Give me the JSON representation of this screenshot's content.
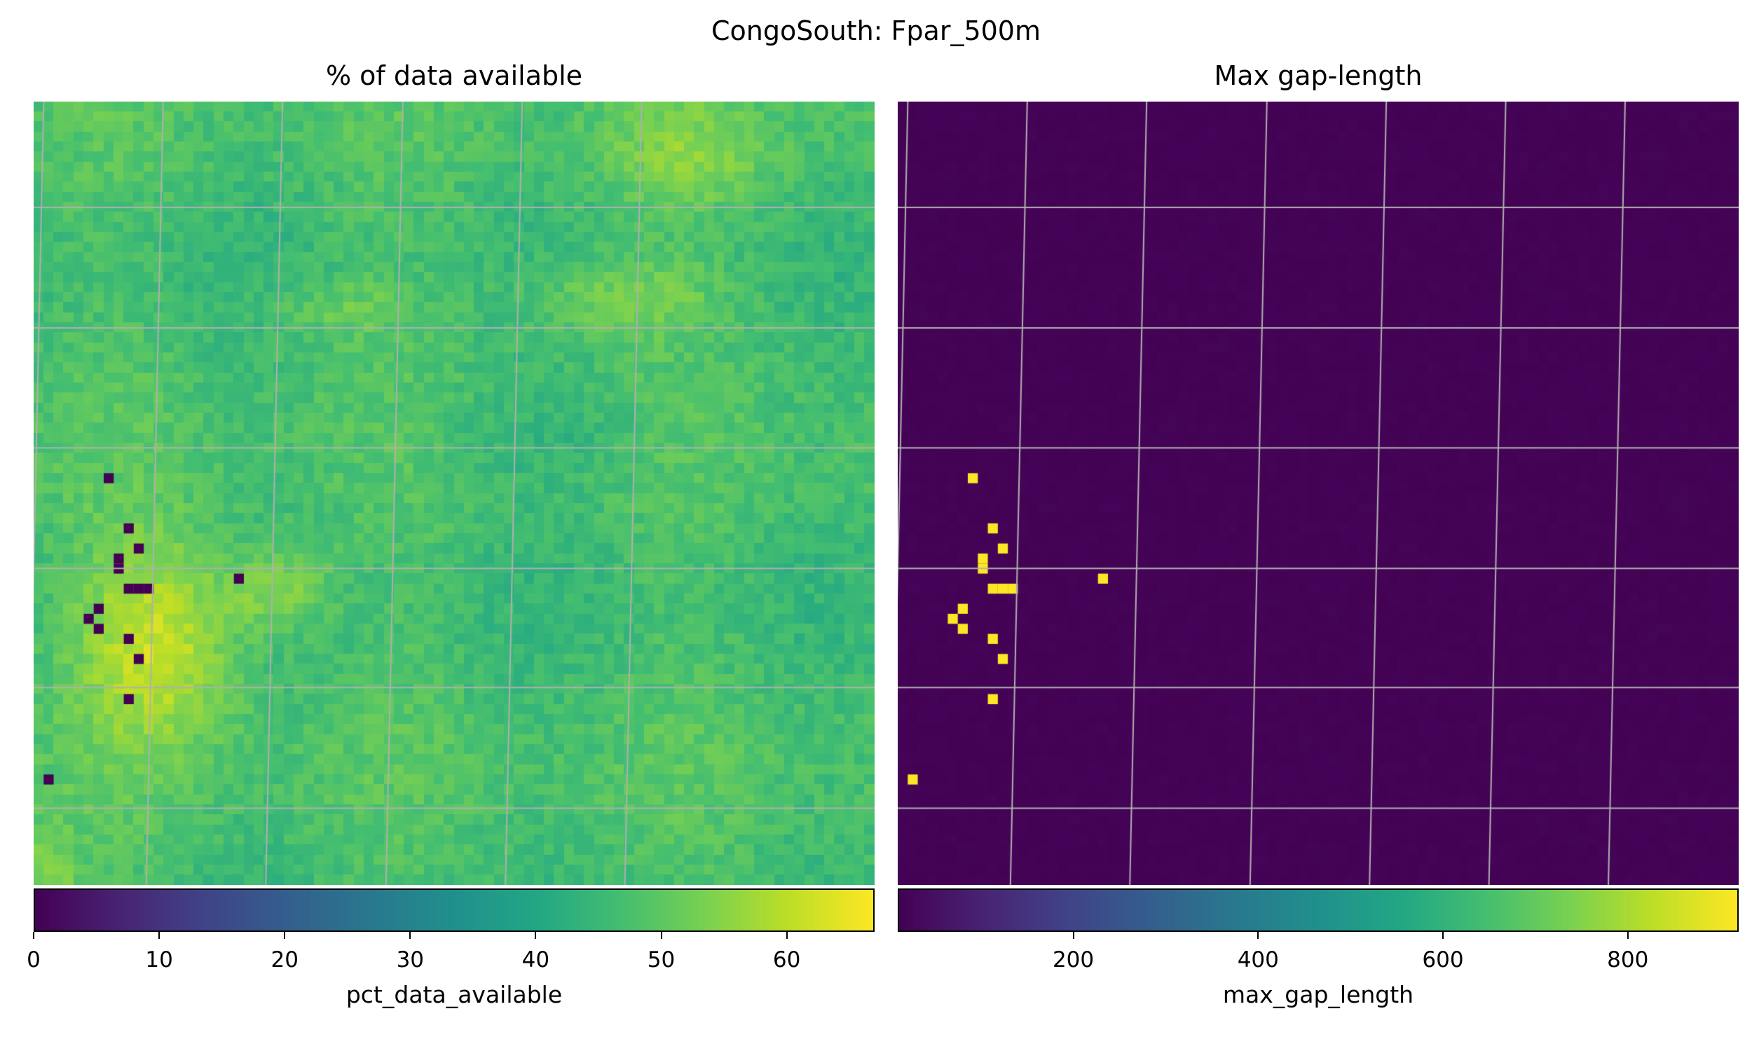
{
  "suptitle": "CongoSouth: Fpar_500m",
  "chart_data": [
    {
      "type": "heatmap",
      "title": "% of data available",
      "colorbar_label": "pct_data_available",
      "colormap": "viridis",
      "vmin": 0,
      "vmax": 67,
      "colorbar_ticks": [
        0,
        10,
        20,
        30,
        40,
        50,
        60
      ],
      "grid": true,
      "grid_color": "#b0b0b0",
      "field_description": "green field mostly 40-55, brighter yellow-green band 55-67 on left and center-upper, dark purple missing cells near 0",
      "low_value_cells": [
        {
          "col": 7,
          "row": 37,
          "value": 0
        },
        {
          "col": 9,
          "row": 42,
          "value": 0
        },
        {
          "col": 10,
          "row": 44,
          "value": 0
        },
        {
          "col": 8,
          "row": 45,
          "value": 0
        },
        {
          "col": 8,
          "row": 46,
          "value": 0
        },
        {
          "col": 9,
          "row": 48,
          "value": 0
        },
        {
          "col": 10,
          "row": 48,
          "value": 0
        },
        {
          "col": 11,
          "row": 48,
          "value": 0
        },
        {
          "col": 20,
          "row": 47,
          "value": 0
        },
        {
          "col": 6,
          "row": 50,
          "value": 0
        },
        {
          "col": 5,
          "row": 51,
          "value": 0
        },
        {
          "col": 6,
          "row": 52,
          "value": 0
        },
        {
          "col": 9,
          "row": 53,
          "value": 0
        },
        {
          "col": 10,
          "row": 55,
          "value": 0
        },
        {
          "col": 9,
          "row": 59,
          "value": 0
        },
        {
          "col": 1,
          "row": 67,
          "value": 0
        }
      ]
    },
    {
      "type": "heatmap",
      "title": "Max gap-length",
      "colorbar_label": "max_gap_length",
      "colormap": "viridis",
      "vmin": 10,
      "vmax": 920,
      "colorbar_ticks": [
        200,
        400,
        600,
        800
      ],
      "grid": true,
      "grid_color": "#b0b0b0",
      "background_value": 15,
      "high_value_cells": [
        {
          "col": 7,
          "row": 37,
          "value": 920
        },
        {
          "col": 9,
          "row": 42,
          "value": 920
        },
        {
          "col": 10,
          "row": 44,
          "value": 920
        },
        {
          "col": 8,
          "row": 45,
          "value": 920
        },
        {
          "col": 8,
          "row": 46,
          "value": 920
        },
        {
          "col": 9,
          "row": 48,
          "value": 920
        },
        {
          "col": 10,
          "row": 48,
          "value": 920
        },
        {
          "col": 11,
          "row": 48,
          "value": 920
        },
        {
          "col": 20,
          "row": 47,
          "value": 920
        },
        {
          "col": 6,
          "row": 50,
          "value": 920
        },
        {
          "col": 5,
          "row": 51,
          "value": 920
        },
        {
          "col": 6,
          "row": 52,
          "value": 920
        },
        {
          "col": 9,
          "row": 53,
          "value": 920
        },
        {
          "col": 10,
          "row": 55,
          "value": 920
        },
        {
          "col": 9,
          "row": 59,
          "value": 920
        },
        {
          "col": 1,
          "row": 67,
          "value": 920
        }
      ]
    }
  ]
}
